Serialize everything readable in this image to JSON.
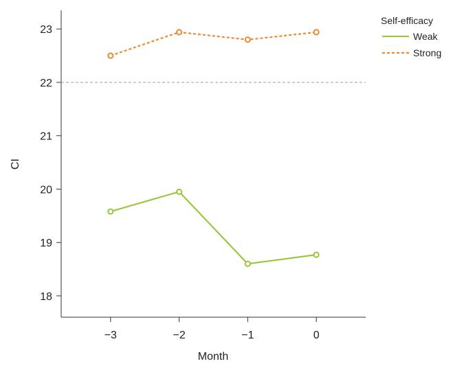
{
  "chart_data": {
    "type": "line",
    "title": "",
    "xlabel": "Month",
    "ylabel": "CI",
    "x": [
      -3,
      -2,
      -1,
      0
    ],
    "x_tick_labels": [
      "−3",
      "−2",
      "−1",
      "0"
    ],
    "xlim": [
      -3.72,
      0.72
    ],
    "ylim": [
      17.6,
      23.35
    ],
    "y_ticks": [
      18,
      19,
      20,
      21,
      22,
      23
    ],
    "reference_line": {
      "y": 22,
      "style": "dashed",
      "color": "#9e9e9e"
    },
    "grid": false,
    "legend": {
      "title": "Self-efficacy",
      "position": "top-right"
    },
    "series": [
      {
        "name": "Weak",
        "values": [
          19.58,
          19.95,
          18.6,
          18.77
        ],
        "color": "#9ac73c",
        "line_style": "solid",
        "marker": "open-circle"
      },
      {
        "name": "Strong",
        "values": [
          22.5,
          22.94,
          22.8,
          22.94
        ],
        "color": "#ef8a2b",
        "line_style": "dashed",
        "marker": "open-circle"
      }
    ]
  }
}
